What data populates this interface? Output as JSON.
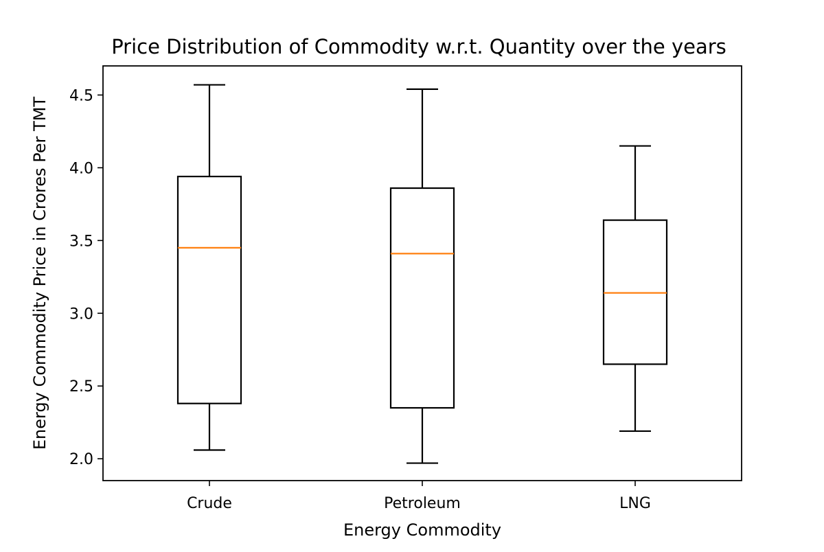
{
  "chart_data": {
    "type": "box",
    "title": "Price Distribution of Commodity w.r.t. Quantity over the years",
    "xlabel": "Energy Commodity",
    "ylabel": "Energy Commodity Price in Crores Per TMT",
    "categories": [
      "Crude",
      "Petroleum",
      "LNG"
    ],
    "ylim": [
      1.85,
      4.7
    ],
    "yticks": [
      2.0,
      2.5,
      3.0,
      3.5,
      4.0,
      4.5
    ],
    "ytick_labels": [
      "2.0",
      "2.5",
      "3.0",
      "3.5",
      "4.0",
      "4.5"
    ],
    "grid": false,
    "boxes": [
      {
        "category": "Crude",
        "whisker_low": 2.06,
        "q1": 2.38,
        "median": 3.45,
        "q3": 3.94,
        "whisker_high": 4.57
      },
      {
        "category": "Petroleum",
        "whisker_low": 1.97,
        "q1": 2.35,
        "median": 3.41,
        "q3": 3.86,
        "whisker_high": 4.54
      },
      {
        "category": "LNG",
        "whisker_low": 2.19,
        "q1": 2.65,
        "median": 3.14,
        "q3": 3.64,
        "whisker_high": 4.15
      }
    ],
    "colors": {
      "box": "#000000",
      "median": "#ff7f0e",
      "whisker": "#000000"
    }
  }
}
